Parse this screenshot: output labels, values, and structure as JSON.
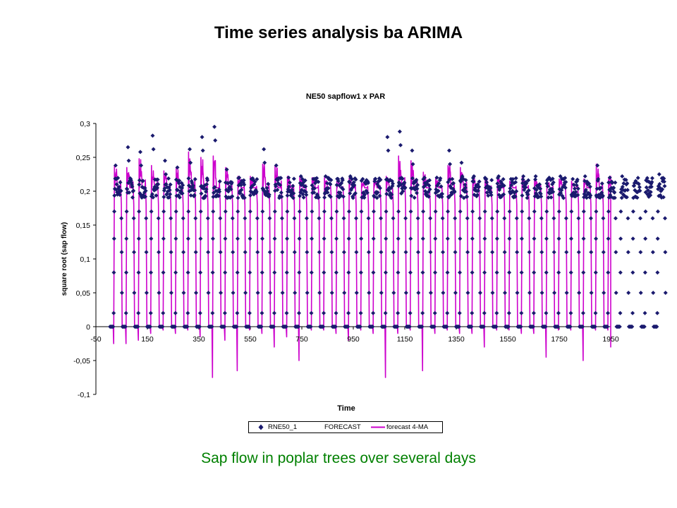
{
  "slide": {
    "title": "Time series analysis ba ARIMA",
    "caption": "Sap flow in poplar trees over several days"
  },
  "chart_data": {
    "type": "line",
    "title": "NE50 sapflow1 x PAR",
    "xlabel": "Time",
    "ylabel": "square root (sap flow)",
    "xlim": [
      -50,
      1950
    ],
    "ylim": [
      -0.1,
      0.3
    ],
    "x_ticks": [
      "-50",
      "150",
      "350",
      "550",
      "750",
      "950",
      "1150",
      "1350",
      "1550",
      "1750",
      "1950"
    ],
    "y_ticks": [
      "0,3",
      "0,25",
      "0,2",
      "0,15",
      "0,1",
      "0,05",
      "0",
      "-0,05",
      "-0,1"
    ],
    "grid": false,
    "legend_position": "bottom",
    "day_period": 48,
    "first_day_start": 5,
    "series": [
      {
        "name": "RNE50_1",
        "marker": "diamond",
        "color": "#1a1a6e",
        "day_peaks": [
          0.238,
          0.265,
          0.258,
          0.282,
          0.245,
          0.235,
          0.262,
          0.28,
          0.295,
          0.232,
          0.22,
          0.218,
          0.262,
          0.238,
          0.22,
          0.222,
          0.218,
          0.222,
          0.218,
          0.222,
          0.218,
          0.218,
          0.28,
          0.288,
          0.26,
          0.22,
          0.22,
          0.26,
          0.242,
          0.222,
          0.218,
          0.222,
          0.218,
          0.222,
          0.222,
          0.218,
          0.222,
          0.218,
          0.222,
          0.238,
          0.22,
          0.222,
          0.212,
          0.215,
          0.225
        ]
      },
      {
        "name": "FORECAST",
        "color": "#cc00cc"
      },
      {
        "name": "forecast 4-MA",
        "color": "#cc00cc",
        "day_peaks": [
          0.238,
          0.235,
          0.248,
          0.238,
          0.23,
          0.235,
          0.258,
          0.25,
          0.252,
          0.235,
          0.222,
          0.222,
          0.24,
          0.238,
          0.222,
          0.222,
          0.22,
          0.22,
          0.215,
          0.22,
          0.215,
          0.218,
          0.222,
          0.252,
          0.245,
          0.228,
          0.22,
          0.238,
          0.235,
          0.22,
          0.218,
          0.22,
          0.215,
          0.22,
          0.218,
          0.215,
          0.218,
          0.215,
          0.218,
          0.24,
          0.22,
          0.222,
          0.212,
          0.215,
          0.222
        ],
        "day_dips": [
          -0.025,
          -0.025,
          -0.02,
          -0.01,
          -0.005,
          -0.01,
          -0.005,
          -0.015,
          -0.075,
          -0.02,
          -0.065,
          -0.005,
          -0.01,
          -0.03,
          -0.015,
          -0.05,
          -0.005,
          -0.005,
          -0.01,
          -0.02,
          -0.005,
          -0.01,
          -0.075,
          -0.01,
          -0.005,
          -0.065,
          -0.01,
          -0.005,
          -0.01,
          -0.01,
          -0.03,
          -0.005,
          -0.005,
          -0.01,
          -0.01,
          -0.045,
          -0.005,
          -0.005,
          -0.05,
          -0.005,
          -0.005,
          -0.03,
          -0.005,
          -0.005,
          -0.005
        ]
      }
    ]
  }
}
